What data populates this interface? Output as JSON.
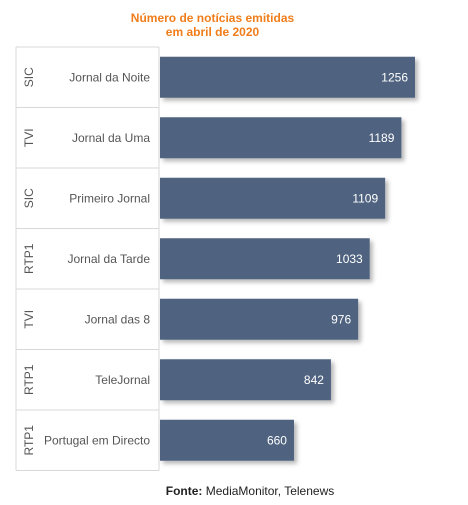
{
  "chart_data": {
    "type": "bar",
    "orientation": "horizontal",
    "title": "Número de notícias emitidas em abril de 2020",
    "title_lines": [
      "Número de notícias emitidas",
      "em abril de 2020"
    ],
    "groups": [
      "SIC",
      "TVI",
      "SIC",
      "RTP1",
      "TVI",
      "RTP1",
      "RTP1"
    ],
    "categories": [
      "Jornal da Noite",
      "Jornal da Uma",
      "Primeiro Jornal",
      "Jornal da Tarde",
      "Jornal das 8",
      "TeleJornal",
      "Portugal em Directo"
    ],
    "values": [
      1256,
      1189,
      1109,
      1033,
      976,
      842,
      660
    ],
    "xlim": [
      0,
      1256
    ],
    "grid": false,
    "legend": "none",
    "bar_color": "#4f6480",
    "title_color": "#f07d1a"
  },
  "source": {
    "label": "Fonte:",
    "text": "MediaMonitor, Telenews"
  }
}
